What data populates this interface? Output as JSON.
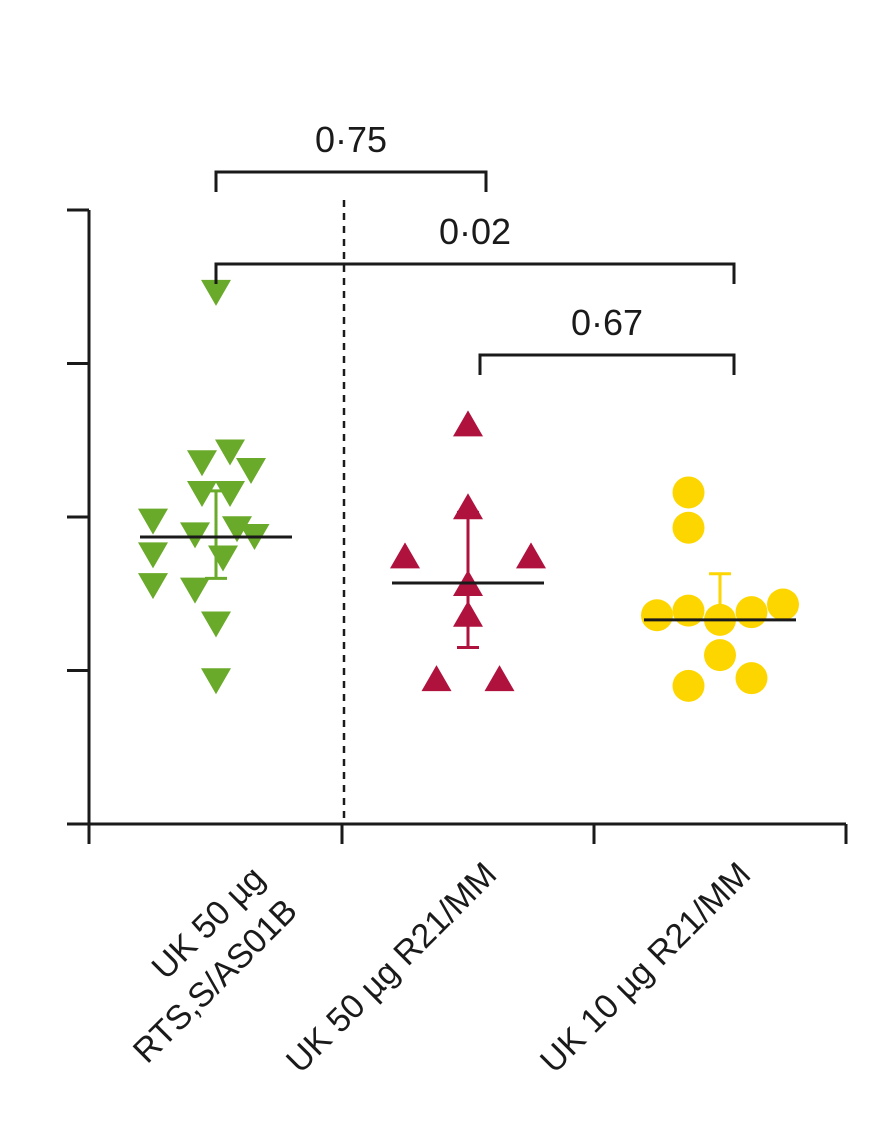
{
  "chart_data": {
    "type": "scatter",
    "title": "",
    "xlabel": "",
    "ylabel": "",
    "ylim": [
      0,
      4
    ],
    "y_ticks": [
      0,
      1,
      2,
      3,
      4
    ],
    "y_tick_labels_shown": false,
    "grid": false,
    "legend": "none",
    "categories": [
      {
        "label_lines": [
          "UK 50 µg",
          "RTS,S/AS01B"
        ]
      },
      {
        "label_lines": [
          "UK 50 µg R21/MM"
        ]
      },
      {
        "label_lines": [
          "UK 10 µg R21/MM"
        ]
      }
    ],
    "series": [
      {
        "category_index": 0,
        "marker": "triangle-down",
        "color": "#6aaa2a",
        "points": [
          {
            "jitter": 0,
            "y": 3.46
          },
          {
            "jitter": 0.2,
            "y": 2.42
          },
          {
            "jitter": -0.2,
            "y": 2.35
          },
          {
            "jitter": 0.5,
            "y": 2.3
          },
          {
            "jitter": -0.9,
            "y": 1.97
          },
          {
            "jitter": -0.2,
            "y": 2.15
          },
          {
            "jitter": 0.2,
            "y": 2.15
          },
          {
            "jitter": 0.55,
            "y": 1.87
          },
          {
            "jitter": -0.9,
            "y": 1.75
          },
          {
            "jitter": -0.3,
            "y": 1.88
          },
          {
            "jitter": 0.3,
            "y": 1.92
          },
          {
            "jitter": 0.1,
            "y": 1.73
          },
          {
            "jitter": -0.9,
            "y": 1.55
          },
          {
            "jitter": -0.3,
            "y": 1.52
          },
          {
            "jitter": 0,
            "y": 1.3
          },
          {
            "jitter": 0,
            "y": 0.93
          }
        ],
        "center": 1.87,
        "err_low": 1.6,
        "err_high": 2.17
      },
      {
        "category_index": 1,
        "marker": "triangle-up",
        "color": "#b0123e",
        "points": [
          {
            "jitter": 0,
            "y": 2.61
          },
          {
            "jitter": 0,
            "y": 2.07
          },
          {
            "jitter": -0.9,
            "y": 1.75
          },
          {
            "jitter": 0.9,
            "y": 1.75
          },
          {
            "jitter": 0,
            "y": 1.57
          },
          {
            "jitter": 0,
            "y": 1.37
          },
          {
            "jitter": -0.45,
            "y": 0.95
          },
          {
            "jitter": 0.45,
            "y": 0.95
          }
        ],
        "center": 1.57,
        "err_low": 1.15,
        "err_high": 2.03
      },
      {
        "category_index": 2,
        "marker": "circle",
        "color": "#fdd600",
        "points": [
          {
            "jitter": -0.45,
            "y": 2.16
          },
          {
            "jitter": -0.45,
            "y": 1.93
          },
          {
            "jitter": 0.9,
            "y": 1.43
          },
          {
            "jitter": -0.45,
            "y": 1.39
          },
          {
            "jitter": 0.45,
            "y": 1.38
          },
          {
            "jitter": -0.9,
            "y": 1.36
          },
          {
            "jitter": 0,
            "y": 1.33
          },
          {
            "jitter": 0,
            "y": 1.1
          },
          {
            "jitter": 0.45,
            "y": 0.95
          },
          {
            "jitter": -0.45,
            "y": 0.9
          }
        ],
        "center": 1.33,
        "err_low": null,
        "err_high": 1.63
      }
    ],
    "comparisons": [
      {
        "from": 0,
        "to": 1,
        "p_value": "0·75"
      },
      {
        "from": 0,
        "to": 2,
        "p_value": "0·02"
      },
      {
        "from": 1,
        "to": 2,
        "p_value": "0·67"
      }
    ],
    "divider_after_category": 0
  }
}
